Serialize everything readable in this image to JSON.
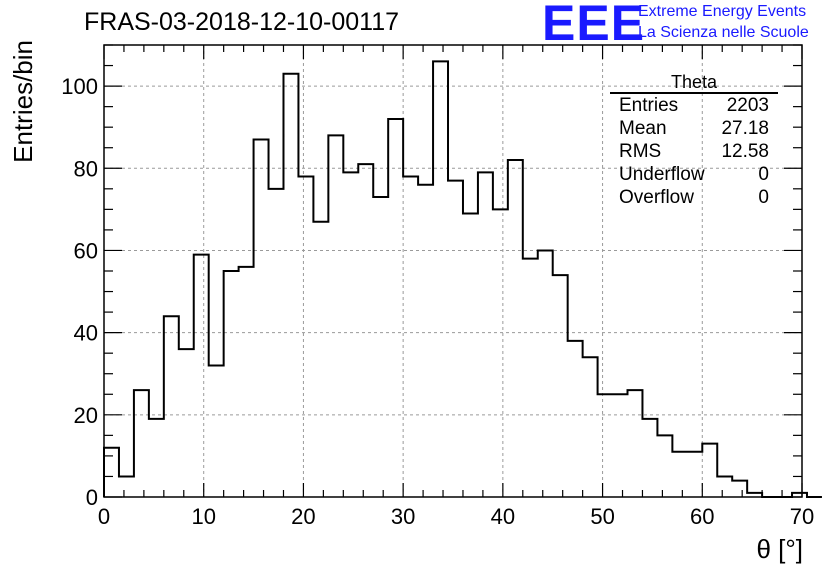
{
  "title": "FRAS-03-2018-12-10-00117",
  "logo": {
    "mark": "EEE",
    "line1": "Extreme Energy Events",
    "line2": "La Scienza nelle Scuole",
    "color": "#1a1aff"
  },
  "stats": {
    "title": "Theta",
    "rows": [
      {
        "label": "Entries",
        "value": "2203"
      },
      {
        "label": "Mean",
        "value": "27.18"
      },
      {
        "label": "RMS",
        "value": "12.58"
      },
      {
        "label": "Underflow",
        "value": "0"
      },
      {
        "label": "Overflow",
        "value": "0"
      }
    ]
  },
  "chart_data": {
    "type": "bar",
    "style": "step-histogram",
    "xlabel": "θ [°]",
    "ylabel": "Entries/bin",
    "xlim": [
      0,
      70
    ],
    "ylim": [
      0,
      110
    ],
    "bin_width": 1.5,
    "x_ticks": [
      0,
      10,
      20,
      30,
      40,
      50,
      60,
      70
    ],
    "y_ticks": [
      0,
      20,
      40,
      60,
      80,
      100
    ],
    "grid": true,
    "values": [
      12,
      5,
      26,
      19,
      44,
      36,
      59,
      32,
      55,
      56,
      87,
      75,
      103,
      78,
      67,
      88,
      79,
      81,
      73,
      92,
      78,
      76,
      106,
      77,
      69,
      79,
      70,
      82,
      58,
      60,
      54,
      38,
      34,
      25,
      25,
      26,
      19,
      15,
      11,
      11,
      13,
      5,
      4,
      1,
      0,
      0,
      1,
      0
    ]
  }
}
